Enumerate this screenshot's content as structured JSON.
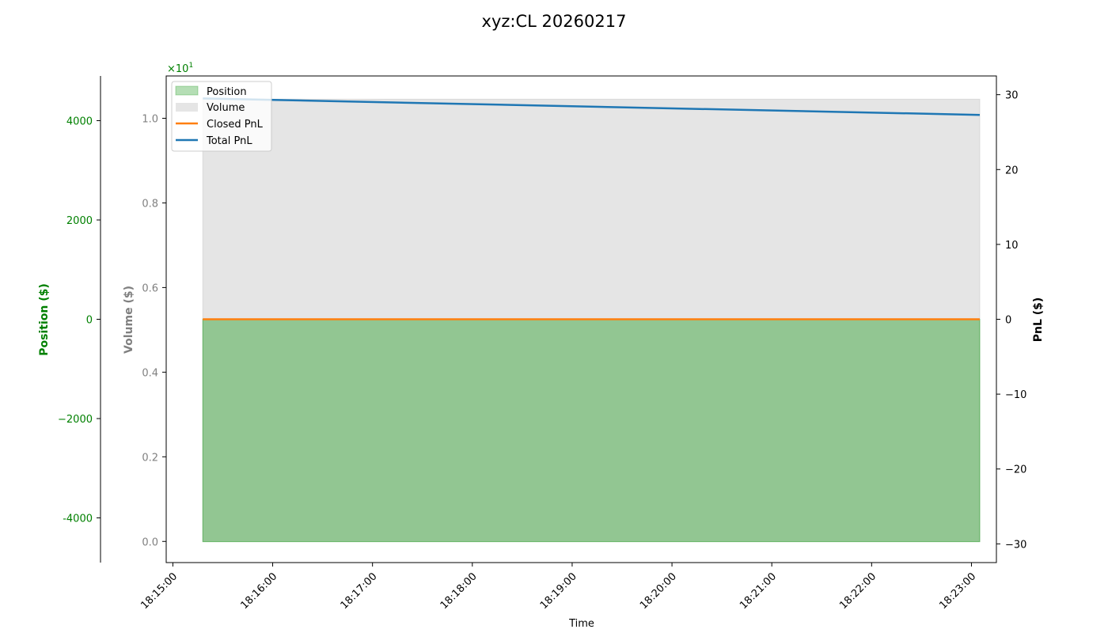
{
  "chart_data": {
    "type": "area",
    "title": "xyz:CL 20260217",
    "xlabel": "Time",
    "x_ticks": [
      "18:15:00",
      "18:16:00",
      "18:17:00",
      "18:18:00",
      "18:19:00",
      "18:20:00",
      "18:21:00",
      "18:22:00",
      "18:23:00"
    ],
    "x_range": [
      "18:14:56",
      "18:23:15"
    ],
    "data_x_range": [
      "18:15:18",
      "18:23:05"
    ],
    "axes": {
      "position": {
        "label": "Position ($)",
        "color": "#008000",
        "ylim": [
          -4900,
          4900
        ],
        "ticks": [
          "-4000",
          "−2000",
          "0",
          "2000",
          "4000"
        ],
        "tick_values": [
          -4000,
          -2000,
          0,
          2000,
          4000
        ],
        "offset_text_base": "×10",
        "offset_text_exp": "1"
      },
      "volume": {
        "label": "Volume ($)",
        "color": "#808080",
        "ylim": [
          -0.05,
          1.1
        ],
        "ticks": [
          "0.0",
          "0.2",
          "0.4",
          "0.6",
          "0.8",
          "1.0"
        ],
        "tick_values": [
          0.0,
          0.2,
          0.4,
          0.6,
          0.8,
          1.0
        ]
      },
      "pnl": {
        "label": "PnL ($)",
        "color": "#000000",
        "ylim": [
          -32.5,
          32.5
        ],
        "ticks": [
          "−30",
          "−20",
          "−10",
          "0",
          "10",
          "20",
          "30"
        ],
        "tick_values": [
          -30,
          -20,
          -10,
          0,
          10,
          20,
          30
        ]
      }
    },
    "series": [
      {
        "name": "Position",
        "kind": "area",
        "axis": "position",
        "color": "#2ca02c",
        "x": [
          "18:15:18",
          "18:23:05"
        ],
        "values": [
          -4480,
          -4480
        ]
      },
      {
        "name": "Volume",
        "kind": "area",
        "axis": "volume",
        "color": "#cccccc",
        "x": [
          "18:15:18",
          "18:23:05"
        ],
        "values": [
          1.045,
          1.045
        ]
      },
      {
        "name": "Closed PnL",
        "kind": "line",
        "axis": "pnl",
        "color": "#ff7f0e",
        "x": [
          "18:15:18",
          "18:23:05"
        ],
        "values": [
          0,
          0
        ]
      },
      {
        "name": "Total PnL",
        "kind": "line",
        "axis": "pnl",
        "color": "#1f77b4",
        "x": [
          "18:15:18",
          "18:23:05"
        ],
        "values": [
          29.5,
          27.3
        ]
      }
    ],
    "legend_position": "top-left"
  }
}
